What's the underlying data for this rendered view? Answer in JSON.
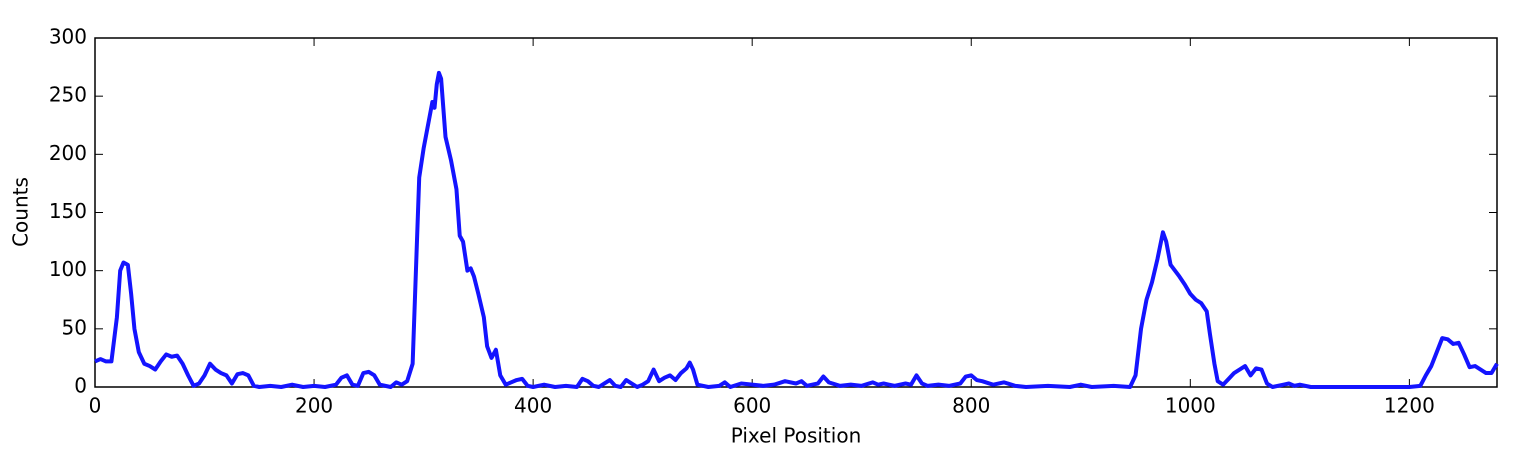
{
  "chart_data": {
    "type": "line",
    "x_label": "Pixel Position",
    "y_label": "Counts",
    "x": [
      0,
      5,
      10,
      15,
      20,
      23,
      26,
      30,
      33,
      36,
      40,
      45,
      50,
      55,
      60,
      65,
      70,
      75,
      80,
      85,
      90,
      95,
      100,
      105,
      110,
      115,
      120,
      125,
      130,
      135,
      140,
      145,
      150,
      160,
      170,
      180,
      190,
      200,
      210,
      220,
      225,
      230,
      235,
      240,
      245,
      250,
      255,
      260,
      270,
      275,
      280,
      285,
      290,
      293,
      296,
      300,
      305,
      308,
      310,
      312,
      314,
      316,
      318,
      320,
      325,
      330,
      333,
      336,
      340,
      343,
      346,
      350,
      355,
      358,
      362,
      366,
      370,
      375,
      380,
      385,
      390,
      395,
      400,
      410,
      420,
      430,
      440,
      445,
      450,
      455,
      460,
      470,
      475,
      480,
      485,
      490,
      495,
      500,
      505,
      510,
      515,
      520,
      525,
      530,
      535,
      540,
      543,
      546,
      550,
      560,
      570,
      575,
      580,
      590,
      600,
      610,
      620,
      630,
      640,
      645,
      650,
      660,
      665,
      670,
      680,
      690,
      700,
      710,
      715,
      720,
      730,
      740,
      745,
      750,
      755,
      760,
      770,
      780,
      790,
      795,
      800,
      805,
      810,
      820,
      830,
      840,
      850,
      870,
      890,
      900,
      910,
      930,
      945,
      950,
      955,
      960,
      965,
      970,
      975,
      978,
      982,
      990,
      995,
      1000,
      1005,
      1010,
      1015,
      1018,
      1022,
      1025,
      1030,
      1035,
      1040,
      1045,
      1050,
      1055,
      1060,
      1065,
      1070,
      1075,
      1085,
      1090,
      1095,
      1100,
      1110,
      1150,
      1200,
      1210,
      1215,
      1220,
      1225,
      1230,
      1235,
      1240,
      1245,
      1250,
      1255,
      1260,
      1265,
      1270,
      1275,
      1280
    ],
    "series": [
      {
        "color": "#1414ff",
        "values": [
          22,
          24,
          22,
          22,
          60,
          100,
          107,
          105,
          80,
          50,
          30,
          20,
          18,
          15,
          22,
          28,
          26,
          27,
          20,
          10,
          1,
          3,
          10,
          20,
          15,
          12,
          10,
          3,
          11,
          12,
          10,
          1,
          0,
          1,
          0,
          2,
          0,
          1,
          0,
          2,
          8,
          10,
          2,
          1,
          12,
          13,
          10,
          2,
          0,
          4,
          2,
          5,
          20,
          100,
          180,
          205,
          230,
          245,
          240,
          260,
          270,
          265,
          240,
          215,
          195,
          170,
          130,
          125,
          100,
          102,
          95,
          80,
          60,
          35,
          25,
          32,
          10,
          2,
          4,
          6,
          7,
          1,
          0,
          2,
          0,
          1,
          0,
          7,
          5,
          1,
          0,
          6,
          1,
          0,
          6,
          3,
          0,
          2,
          5,
          15,
          5,
          8,
          10,
          6,
          12,
          16,
          21,
          15,
          2,
          0,
          1,
          4,
          0,
          3,
          2,
          1,
          2,
          5,
          3,
          5,
          1,
          3,
          9,
          4,
          1,
          2,
          1,
          4,
          2,
          3,
          1,
          3,
          2,
          10,
          3,
          1,
          2,
          1,
          3,
          9,
          10,
          6,
          5,
          2,
          4,
          1,
          0,
          1,
          0,
          2,
          0,
          1,
          0,
          10,
          50,
          75,
          90,
          110,
          133,
          125,
          105,
          95,
          88,
          80,
          75,
          72,
          65,
          45,
          20,
          5,
          2,
          7,
          12,
          15,
          18,
          10,
          16,
          15,
          3,
          0,
          2,
          3,
          1,
          2,
          0,
          0,
          0,
          1,
          10,
          18,
          30,
          42,
          41,
          37,
          38,
          28,
          17,
          18,
          15,
          12,
          12,
          20
        ]
      }
    ],
    "xlim": [
      0,
      1280
    ],
    "ylim": [
      0,
      300
    ],
    "xticks": [
      0,
      200,
      400,
      600,
      800,
      1000,
      1200
    ],
    "yticks": [
      0,
      50,
      100,
      150,
      200,
      250,
      300
    ]
  }
}
